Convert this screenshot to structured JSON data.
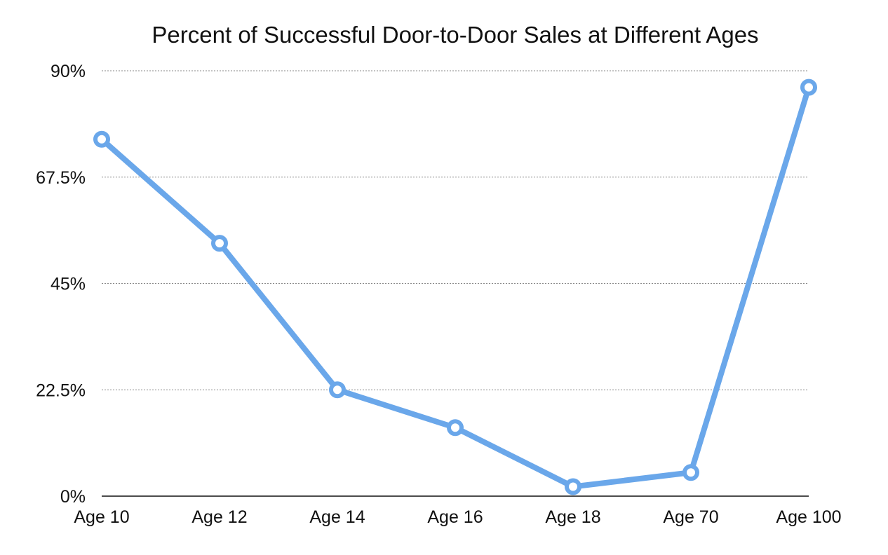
{
  "chart_data": {
    "type": "line",
    "title": "Percent of Successful Door-to-Door Sales at Different Ages",
    "categories": [
      "Age 10",
      "Age 12",
      "Age 14",
      "Age 16",
      "Age 18",
      "Age 70",
      "Age 100"
    ],
    "series": [
      {
        "values": [
          75.5,
          53.5,
          22.5,
          14.5,
          2,
          5,
          86.5
        ]
      }
    ],
    "ylim": [
      0,
      90
    ],
    "yticks": [
      0,
      22.5,
      45,
      67.5,
      90
    ],
    "ytick_labels": [
      "0%",
      "22.5%",
      "45%",
      "67.5%",
      "90%"
    ],
    "xlabel": "",
    "ylabel": "",
    "grid": true,
    "legend": "none",
    "colors": {
      "series": "#6aa7ea",
      "grid": "#8a8a8a",
      "axis": "#111111",
      "text": "#111111"
    }
  }
}
